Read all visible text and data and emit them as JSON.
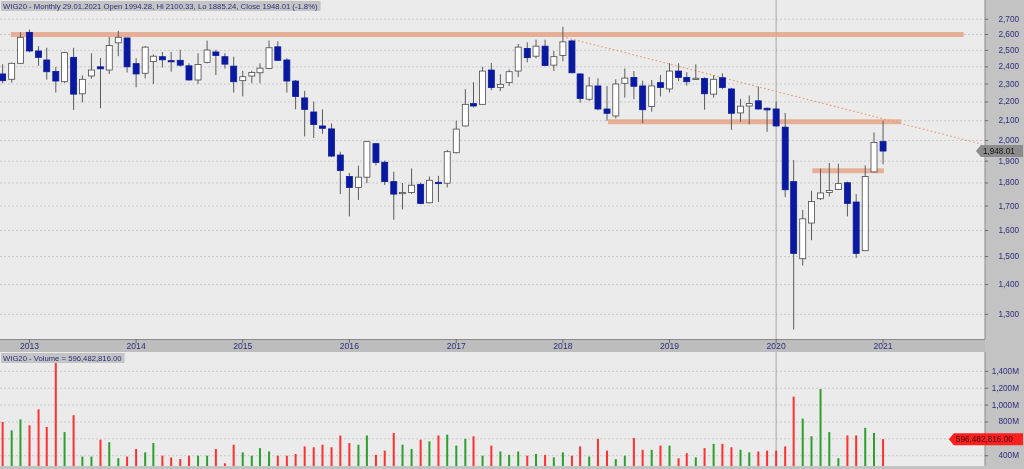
{
  "chart_data": [
    {
      "type": "candlestick",
      "title": "WIG20 - Monthly 29.01.2021 Open 1994.28, Hi 2100.33, Lo 1885.24, Close 1948.01 (-1.8%)",
      "x": [
        "2012-10",
        "2012-11",
        "2012-12",
        "2013-01",
        "2013-02",
        "2013-03",
        "2013-04",
        "2013-05",
        "2013-06",
        "2013-07",
        "2013-08",
        "2013-09",
        "2013-10",
        "2013-11",
        "2013-12",
        "2014-01",
        "2014-02",
        "2014-03",
        "2014-04",
        "2014-05",
        "2014-06",
        "2014-07",
        "2014-08",
        "2014-09",
        "2014-10",
        "2014-11",
        "2014-12",
        "2015-01",
        "2015-02",
        "2015-03",
        "2015-04",
        "2015-05",
        "2015-06",
        "2015-07",
        "2015-08",
        "2015-09",
        "2015-10",
        "2015-11",
        "2015-12",
        "2016-01",
        "2016-02",
        "2016-03",
        "2016-04",
        "2016-05",
        "2016-06",
        "2016-07",
        "2016-08",
        "2016-09",
        "2016-10",
        "2016-11",
        "2016-12",
        "2017-01",
        "2017-02",
        "2017-03",
        "2017-04",
        "2017-05",
        "2017-06",
        "2017-07",
        "2017-08",
        "2017-09",
        "2017-10",
        "2017-11",
        "2017-12",
        "2018-01",
        "2018-02",
        "2018-03",
        "2018-04",
        "2018-05",
        "2018-06",
        "2018-07",
        "2018-08",
        "2018-09",
        "2018-10",
        "2018-11",
        "2018-12",
        "2019-01",
        "2019-02",
        "2019-03",
        "2019-04",
        "2019-05",
        "2019-06",
        "2019-07",
        "2019-08",
        "2019-09",
        "2019-10",
        "2019-11",
        "2019-12",
        "2020-01",
        "2020-02",
        "2020-03",
        "2020-04",
        "2020-05",
        "2020-06",
        "2020-07",
        "2020-08",
        "2020-09",
        "2020-10",
        "2020-11",
        "2020-12",
        "2021-01"
      ],
      "ohlc": [
        [
          2358,
          2415,
          2304,
          2319
        ],
        [
          2327,
          2425,
          2308,
          2421
        ],
        [
          2421,
          2614,
          2418,
          2582
        ],
        [
          2614,
          2632,
          2488,
          2496
        ],
        [
          2496,
          2526,
          2406,
          2457
        ],
        [
          2441,
          2516,
          2325,
          2371
        ],
        [
          2373,
          2400,
          2252,
          2317
        ],
        [
          2313,
          2490,
          2306,
          2486
        ],
        [
          2457,
          2516,
          2157,
          2243
        ],
        [
          2245,
          2350,
          2198,
          2327
        ],
        [
          2346,
          2482,
          2330,
          2381
        ],
        [
          2400,
          2453,
          2166,
          2388
        ],
        [
          2381,
          2584,
          2358,
          2530
        ],
        [
          2547,
          2624,
          2464,
          2582
        ],
        [
          2578,
          2578,
          2367,
          2400
        ],
        [
          2419,
          2451,
          2281,
          2358
        ],
        [
          2362,
          2526,
          2331,
          2520
        ],
        [
          2431,
          2475,
          2300,
          2464
        ],
        [
          2461,
          2490,
          2396,
          2442
        ],
        [
          2437,
          2490,
          2371,
          2434
        ],
        [
          2439,
          2504,
          2400,
          2410
        ],
        [
          2406,
          2421,
          2319,
          2323
        ],
        [
          2323,
          2482,
          2300,
          2414
        ],
        [
          2427,
          2561,
          2421,
          2502
        ],
        [
          2490,
          2504,
          2352,
          2468
        ],
        [
          2461,
          2482,
          2390,
          2416
        ],
        [
          2404,
          2461,
          2252,
          2313
        ],
        [
          2319,
          2377,
          2230,
          2342
        ],
        [
          2346,
          2377,
          2304,
          2367
        ],
        [
          2365,
          2421,
          2304,
          2392
        ],
        [
          2390,
          2561,
          2386,
          2516
        ],
        [
          2522,
          2557,
          2435,
          2439
        ],
        [
          2441,
          2451,
          2252,
          2317
        ],
        [
          2317,
          2323,
          2160,
          2230
        ],
        [
          2222,
          2261,
          2020,
          2160
        ],
        [
          2146,
          2202,
          2012,
          2080
        ],
        [
          2073,
          2160,
          2033,
          2061
        ],
        [
          2058,
          2086,
          1920,
          1924
        ],
        [
          1929,
          1945,
          1751,
          1856
        ],
        [
          1829,
          1845,
          1657,
          1780
        ],
        [
          1780,
          1879,
          1726,
          1826
        ],
        [
          1826,
          1997,
          1799,
          1994
        ],
        [
          1984,
          1987,
          1880,
          1894
        ],
        [
          1895,
          1902,
          1791,
          1806
        ],
        [
          1806,
          1851,
          1643,
          1751
        ],
        [
          1755,
          1800,
          1686,
          1758
        ],
        [
          1758,
          1866,
          1752,
          1790
        ],
        [
          1794,
          1801,
          1708,
          1711
        ],
        [
          1714,
          1829,
          1711,
          1812
        ],
        [
          1803,
          1832,
          1717,
          1797
        ],
        [
          1799,
          1953,
          1780,
          1945
        ],
        [
          1940,
          2100,
          1937,
          2057
        ],
        [
          2073,
          2272,
          2070,
          2187
        ],
        [
          2191,
          2310,
          2170,
          2178
        ],
        [
          2187,
          2400,
          2184,
          2375
        ],
        [
          2381,
          2423,
          2265,
          2280
        ],
        [
          2281,
          2356,
          2260,
          2298
        ],
        [
          2308,
          2384,
          2289,
          2371
        ],
        [
          2375,
          2540,
          2340,
          2520
        ],
        [
          2512,
          2550,
          2427,
          2455
        ],
        [
          2464,
          2567,
          2451,
          2526
        ],
        [
          2526,
          2567,
          2406,
          2408
        ],
        [
          2410,
          2496,
          2375,
          2461
        ],
        [
          2468,
          2650,
          2433,
          2553
        ],
        [
          2559,
          2567,
          2362,
          2365
        ],
        [
          2358,
          2362,
          2196,
          2219
        ],
        [
          2215,
          2340,
          2206,
          2289
        ],
        [
          2289,
          2333,
          2155,
          2162
        ],
        [
          2162,
          2289,
          2100,
          2139
        ],
        [
          2125,
          2327,
          2112,
          2300
        ],
        [
          2304,
          2390,
          2224,
          2334
        ],
        [
          2338,
          2375,
          2215,
          2287
        ],
        [
          2289,
          2319,
          2087,
          2158
        ],
        [
          2175,
          2323,
          2148,
          2289
        ],
        [
          2308,
          2352,
          2230,
          2280
        ],
        [
          2272,
          2421,
          2252,
          2375
        ],
        [
          2375,
          2421,
          2317,
          2338
        ],
        [
          2338,
          2368,
          2291,
          2313
        ],
        [
          2330,
          2415,
          2323,
          2333
        ],
        [
          2332,
          2338,
          2158,
          2245
        ],
        [
          2243,
          2350,
          2224,
          2327
        ],
        [
          2336,
          2362,
          2270,
          2280
        ],
        [
          2272,
          2278,
          2053,
          2139
        ],
        [
          2141,
          2217,
          2093,
          2177
        ],
        [
          2178,
          2235,
          2081,
          2191
        ],
        [
          2206,
          2285,
          2158,
          2162
        ],
        [
          2166,
          2170,
          2043,
          2157
        ],
        [
          2162,
          2202,
          2068,
          2073
        ],
        [
          2067,
          2141,
          1738,
          1770
        ],
        [
          1806,
          1905,
          1252,
          1512
        ],
        [
          1492,
          1684,
          1467,
          1647
        ],
        [
          1630,
          1766,
          1562,
          1719
        ],
        [
          1731,
          1865,
          1726,
          1756
        ],
        [
          1758,
          1891,
          1741,
          1767
        ],
        [
          1771,
          1888,
          1770,
          1797
        ],
        [
          1801,
          1806,
          1657,
          1711
        ],
        [
          1717,
          1751,
          1495,
          1512
        ],
        [
          1522,
          1880,
          1520,
          1829
        ],
        [
          1850,
          2040,
          1848,
          1990
        ],
        [
          1994.28,
          2100.33,
          1885.24,
          1948.01
        ]
      ],
      "colors": [
        "#0a1aa0",
        "#ffffff",
        "#ffffff",
        "#0a1aa0",
        "#0a1aa0",
        "#0a1aa0",
        "#0a1aa0",
        "#ffffff",
        "#0a1aa0",
        "#ffffff",
        "#ffffff",
        "#0a1aa0",
        "#ffffff",
        "#ffffff",
        "#0a1aa0",
        "#0a1aa0",
        "#ffffff",
        "#ffffff",
        "#0a1aa0",
        "#0a1aa0",
        "#0a1aa0",
        "#0a1aa0",
        "#ffffff",
        "#ffffff",
        "#0a1aa0",
        "#0a1aa0",
        "#0a1aa0",
        "#ffffff",
        "#ffffff",
        "#ffffff",
        "#ffffff",
        "#0a1aa0",
        "#0a1aa0",
        "#0a1aa0",
        "#0a1aa0",
        "#0a1aa0",
        "#0a1aa0",
        "#0a1aa0",
        "#0a1aa0",
        "#0a1aa0",
        "#ffffff",
        "#ffffff",
        "#0a1aa0",
        "#0a1aa0",
        "#0a1aa0",
        "#ffffff",
        "#ffffff",
        "#0a1aa0",
        "#ffffff",
        "#0a1aa0",
        "#ffffff",
        "#ffffff",
        "#ffffff",
        "#0a1aa0",
        "#ffffff",
        "#0a1aa0",
        "#ffffff",
        "#ffffff",
        "#ffffff",
        "#0a1aa0",
        "#ffffff",
        "#0a1aa0",
        "#ffffff",
        "#ffffff",
        "#0a1aa0",
        "#0a1aa0",
        "#ffffff",
        "#0a1aa0",
        "#0a1aa0",
        "#ffffff",
        "#ffffff",
        "#0a1aa0",
        "#0a1aa0",
        "#ffffff",
        "#0a1aa0",
        "#ffffff",
        "#0a1aa0",
        "#0a1aa0",
        "#ffffff",
        "#0a1aa0",
        "#ffffff",
        "#0a1aa0",
        "#0a1aa0",
        "#ffffff",
        "#ffffff",
        "#0a1aa0",
        "#0a1aa0",
        "#0a1aa0",
        "#0a1aa0",
        "#0a1aa0",
        "#ffffff",
        "#ffffff",
        "#ffffff",
        "#ffffff",
        "#ffffff",
        "#0a1aa0",
        "#0a1aa0",
        "#ffffff",
        "#ffffff",
        "#0a1aa0"
      ],
      "series": [
        {
          "type": "line",
          "x": [
            "2012-10-29",
            "2021-10-04"
          ],
          "values": [
            2600,
            2600
          ],
          "color": "#e6a48a"
        },
        {
          "type": "line",
          "x": [
            "2018-06-04",
            "2021-03-04"
          ],
          "values": [
            2095,
            2095
          ],
          "color": "#e6a48a"
        },
        {
          "type": "line",
          "x": [
            "2020-05-04",
            "2021-01-04"
          ],
          "values": [
            1855,
            1855
          ],
          "color": "#e6a48a"
        },
        {
          "type": "line",
          "x": [
            "2018-01-13",
            "2021-12-04"
          ],
          "values": [
            2580,
            1982
          ],
          "color": "#f29a6a",
          "line_style": "dotted"
        }
      ],
      "xlim": [
        "2012-09-22",
        "2021-12-16"
      ],
      "xticks": [
        {
          "value": "2013-01",
          "label": "2013"
        },
        {
          "value": "2014-01",
          "label": "2014"
        },
        {
          "value": "2015-01",
          "label": "2015"
        },
        {
          "value": "2016-01",
          "label": "2016"
        },
        {
          "value": "2017-01",
          "label": "2017"
        },
        {
          "value": "2018-01",
          "label": "2018"
        },
        {
          "value": "2019-01",
          "label": "2019"
        },
        {
          "value": "2020-01",
          "label": "2020"
        },
        {
          "value": "2021-01",
          "label": "2021"
        }
      ],
      "ylim": [
        1223,
        2832
      ],
      "yticks": [
        {
          "value": 1300,
          "label": "1,300"
        },
        {
          "value": 1400,
          "label": "1,400"
        },
        {
          "value": 1500,
          "label": "1,500"
        },
        {
          "value": 1600,
          "label": "1,600"
        },
        {
          "value": 1700,
          "label": "1,700"
        },
        {
          "value": 1800,
          "label": "1,800"
        },
        {
          "value": 1900,
          "label": "1,900"
        },
        {
          "value": 2000,
          "label": "2,000"
        },
        {
          "value": 2100,
          "label": "2,100"
        },
        {
          "value": 2200,
          "label": "2,200"
        },
        {
          "value": 2300,
          "label": "2,300"
        },
        {
          "value": 2400,
          "label": "2,400"
        },
        {
          "value": 2500,
          "label": "2,500"
        },
        {
          "value": 2600,
          "label": "2,600"
        },
        {
          "value": 2700,
          "label": "2,700"
        }
      ],
      "log": true,
      "grid": "y",
      "ref_lines": [
        {
          "axis": "x",
          "value": "2020-01",
          "color": "#a6a6a6"
        }
      ],
      "annotations": [
        "1,948.01"
      ]
    },
    {
      "type": "bar",
      "title": "WIG20 - Volume = 596,482,816.00",
      "x": [
        "2012-10",
        "2012-11",
        "2012-12",
        "2013-01",
        "2013-02",
        "2013-03",
        "2013-04",
        "2013-05",
        "2013-06",
        "2013-07",
        "2013-08",
        "2013-09",
        "2013-10",
        "2013-11",
        "2013-12",
        "2014-01",
        "2014-02",
        "2014-03",
        "2014-04",
        "2014-05",
        "2014-06",
        "2014-07",
        "2014-08",
        "2014-09",
        "2014-10",
        "2014-11",
        "2014-12",
        "2015-01",
        "2015-02",
        "2015-03",
        "2015-04",
        "2015-05",
        "2015-06",
        "2015-07",
        "2015-08",
        "2015-09",
        "2015-10",
        "2015-11",
        "2015-12",
        "2016-01",
        "2016-02",
        "2016-03",
        "2016-04",
        "2016-05",
        "2016-06",
        "2016-07",
        "2016-08",
        "2016-09",
        "2016-10",
        "2016-11",
        "2016-12",
        "2017-01",
        "2017-02",
        "2017-03",
        "2017-04",
        "2017-05",
        "2017-06",
        "2017-07",
        "2017-08",
        "2017-09",
        "2017-10",
        "2017-11",
        "2017-12",
        "2018-01",
        "2018-02",
        "2018-03",
        "2018-04",
        "2018-05",
        "2018-06",
        "2018-07",
        "2018-08",
        "2018-09",
        "2018-10",
        "2018-11",
        "2018-12",
        "2019-01",
        "2019-02",
        "2019-03",
        "2019-04",
        "2019-05",
        "2019-06",
        "2019-07",
        "2019-08",
        "2019-09",
        "2019-10",
        "2019-11",
        "2019-12",
        "2020-01",
        "2020-02",
        "2020-03",
        "2020-04",
        "2020-05",
        "2020-06",
        "2020-07",
        "2020-08",
        "2020-09",
        "2020-10",
        "2020-11",
        "2020-12",
        "2021-01"
      ],
      "values": [
        800,
        700,
        830,
        760,
        950,
        740,
        1510,
        680,
        880,
        390,
        390,
        590,
        560,
        370,
        390,
        480,
        440,
        550,
        400,
        380,
        360,
        400,
        400,
        400,
        480,
        310,
        530,
        440,
        400,
        490,
        450,
        400,
        400,
        420,
        510,
        500,
        530,
        500,
        640,
        550,
        530,
        640,
        410,
        460,
        670,
        530,
        480,
        590,
        570,
        640,
        650,
        520,
        600,
        630,
        400,
        520,
        450,
        410,
        450,
        400,
        420,
        410,
        380,
        440,
        400,
        510,
        390,
        600,
        460,
        360,
        400,
        610,
        470,
        470,
        520,
        520,
        370,
        430,
        380,
        490,
        540,
        540,
        500,
        470,
        440,
        450,
        460,
        460,
        510,
        1100,
        840,
        630,
        1190,
        680,
        370,
        640,
        640,
        730,
        670,
        596.48
      ],
      "colors": [
        "#ff3030",
        "#2ca02c",
        "#2ca02c",
        "#ff3030",
        "#ff3030",
        "#ff3030",
        "#ff3030",
        "#2ca02c",
        "#ff3030",
        "#2ca02c",
        "#2ca02c",
        "#ff3030",
        "#2ca02c",
        "#2ca02c",
        "#ff3030",
        "#ff3030",
        "#2ca02c",
        "#2ca02c",
        "#ff3030",
        "#ff3030",
        "#ff3030",
        "#ff3030",
        "#2ca02c",
        "#2ca02c",
        "#ff3030",
        "#ff3030",
        "#ff3030",
        "#2ca02c",
        "#2ca02c",
        "#2ca02c",
        "#2ca02c",
        "#ff3030",
        "#ff3030",
        "#ff3030",
        "#ff3030",
        "#ff3030",
        "#ff3030",
        "#ff3030",
        "#ff3030",
        "#ff3030",
        "#2ca02c",
        "#2ca02c",
        "#ff3030",
        "#ff3030",
        "#ff3030",
        "#2ca02c",
        "#2ca02c",
        "#ff3030",
        "#2ca02c",
        "#ff3030",
        "#2ca02c",
        "#2ca02c",
        "#2ca02c",
        "#ff3030",
        "#2ca02c",
        "#ff3030",
        "#2ca02c",
        "#2ca02c",
        "#2ca02c",
        "#ff3030",
        "#2ca02c",
        "#ff3030",
        "#2ca02c",
        "#2ca02c",
        "#ff3030",
        "#ff3030",
        "#2ca02c",
        "#ff3030",
        "#ff3030",
        "#2ca02c",
        "#2ca02c",
        "#ff3030",
        "#ff3030",
        "#2ca02c",
        "#ff3030",
        "#2ca02c",
        "#ff3030",
        "#ff3030",
        "#2ca02c",
        "#ff3030",
        "#2ca02c",
        "#ff3030",
        "#ff3030",
        "#2ca02c",
        "#2ca02c",
        "#ff3030",
        "#ff3030",
        "#ff3030",
        "#ff3030",
        "#ff3030",
        "#2ca02c",
        "#2ca02c",
        "#2ca02c",
        "#2ca02c",
        "#2ca02c",
        "#ff3030",
        "#ff3030",
        "#2ca02c",
        "#2ca02c",
        "#ff3030"
      ],
      "xlim": [
        "2012-09-22",
        "2021-12-16"
      ],
      "ylim": [
        278,
        1629
      ],
      "yticks": [
        {
          "value": 400,
          "label": "400M"
        },
        {
          "value": 600,
          "label": null
        },
        {
          "value": 800,
          "label": "800M"
        },
        {
          "value": 1000,
          "label": "1,000M"
        },
        {
          "value": 1200,
          "label": "1,200M"
        },
        {
          "value": 1400,
          "label": "1,400M"
        }
      ],
      "grid": "y",
      "tick_labels": "y",
      "ref_lines": [
        {
          "axis": "x",
          "value": "2020-01",
          "color": "#a6a6a6"
        }
      ],
      "annotations": [
        "596,482,816.00"
      ]
    }
  ]
}
